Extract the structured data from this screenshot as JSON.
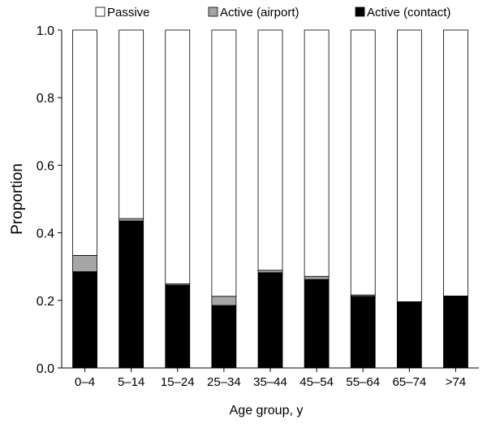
{
  "chart_data": {
    "type": "bar",
    "stacked": true,
    "title": "",
    "xlabel": "Age group, y",
    "ylabel": "Proportion",
    "ylim": [
      0,
      1
    ],
    "yticks": [
      "0.0",
      "0.2",
      "0.4",
      "0.6",
      "0.8",
      "1.0"
    ],
    "grid": false,
    "legend_position": "top",
    "categories": [
      "0–4",
      "5–14",
      "15–24",
      "25–34",
      "35–44",
      "45–54",
      "55–64",
      "65–74",
      ">74"
    ],
    "series": [
      {
        "name": "Active (contact)",
        "color": "#000000",
        "values": [
          0.285,
          0.435,
          0.245,
          0.185,
          0.282,
          0.262,
          0.212,
          0.196,
          0.213
        ]
      },
      {
        "name": "Active (airport)",
        "color": "#a6a6a6",
        "values": [
          0.048,
          0.007,
          0.004,
          0.027,
          0.007,
          0.009,
          0.004,
          0.0,
          0.0
        ]
      },
      {
        "name": "Passive",
        "color": "#ffffff",
        "values": [
          0.667,
          0.558,
          0.751,
          0.788,
          0.711,
          0.729,
          0.784,
          0.804,
          0.787
        ]
      }
    ],
    "legend_order": [
      "Passive",
      "Active (airport)",
      "Active (contact)"
    ]
  }
}
